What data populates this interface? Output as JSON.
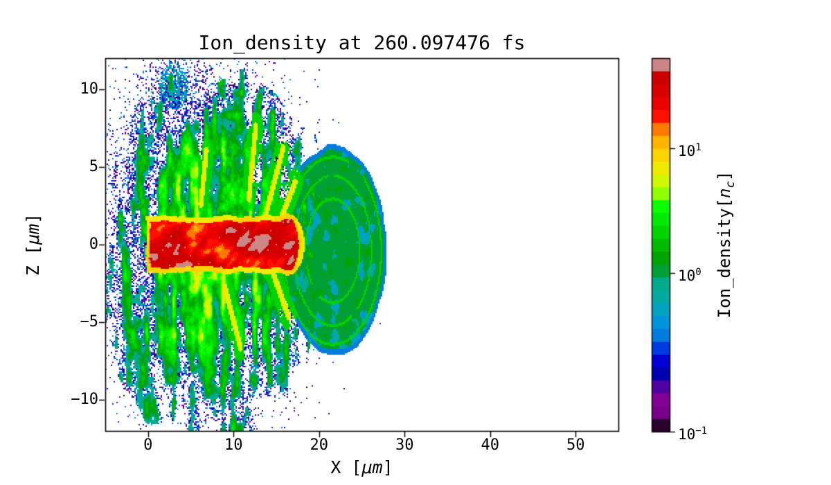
{
  "figure": {
    "background": "#ffffff"
  },
  "chart_data": {
    "type": "heatmap",
    "title": "Ion_density at 260.097476 fs",
    "xlabel": "X [μm]",
    "ylabel": "Z [μm]",
    "xlabel_parts": {
      "pre": "X [",
      "unit": "μm",
      "post": "]"
    },
    "ylabel_parts": {
      "pre": "Z [",
      "unit": "μm",
      "post": "]"
    },
    "x_range": [
      -5,
      55
    ],
    "z_range": [
      -12,
      12
    ],
    "x_ticks": [
      0,
      10,
      20,
      30,
      40,
      50
    ],
    "x_tick_labels": [
      "0",
      "10",
      "20",
      "30",
      "40",
      "50"
    ],
    "y_ticks": [
      10,
      5,
      0,
      -5,
      -10
    ],
    "y_tick_labels": [
      "10",
      "5",
      "0",
      "−5",
      "−10"
    ],
    "grid": false,
    "colorbar": {
      "label": "Ion_density[n_c]",
      "label_parts": {
        "pre": "Ion_density[",
        "symbol": "n",
        "sub": "c",
        "post": "]"
      },
      "scale": "log",
      "n_bands": 29,
      "value_min": 0.1,
      "value_max": 52,
      "ticks": [
        {
          "mantissa": "10",
          "exponent": "1",
          "value": 10,
          "frac_from_bottom": 0.759
        },
        {
          "mantissa": "10",
          "exponent": "0",
          "value": 1,
          "frac_from_bottom": 0.425
        },
        {
          "mantissa": "10",
          "exponent": "−1",
          "value": 0.1,
          "frac_from_bottom": 0.0
        }
      ]
    },
    "colormap_name": "nipy_spectral",
    "colormap_stops": [
      "#000000",
      "#770088",
      "#880099",
      "#0000AA",
      "#0000DD",
      "#0077DD",
      "#0099DD",
      "#00AAAA",
      "#00AA88",
      "#009900",
      "#00BB00",
      "#00DD00",
      "#00FF00",
      "#BBFF00",
      "#EEEE00",
      "#FFCC00",
      "#FF9900",
      "#FF0000",
      "#DD0000",
      "#CC0000",
      "#CCCCCC"
    ],
    "field": {
      "core": {
        "x_min": -0.2,
        "x_tip": 18.3,
        "z_half_width": 1.85,
        "rim_value": 7,
        "interior_value_range": [
          9,
          40
        ],
        "hotspot": {
          "x": 12.3,
          "z": 0.15,
          "extra": 16
        },
        "max_speck_value": 58
      },
      "plume": {
        "center_x": 7.0,
        "center_z": -0.3,
        "radius_x": 13.0,
        "radius_z": 11.2,
        "base_value_range": [
          0.7,
          3.5
        ],
        "filament_value": 6.5
      },
      "blob": {
        "center_x": 21.6,
        "center_z": -0.4,
        "radius_x": 6.3,
        "radius_z": 6.7,
        "base_value": 1.0,
        "blue_patch_value": 0.55,
        "arc_value": 1.9,
        "rim_value": 0.42,
        "arc_radii_frac": [
          0.5,
          0.72,
          0.9
        ]
      },
      "downward_column": {
        "x_min": 8.0,
        "x_max": 12.5,
        "z_max": -5.5,
        "value": 1.1
      },
      "lower_left_blob": {
        "x": 3.0,
        "z": -6.0,
        "radius": 3.4,
        "value": 2.0
      },
      "upper_cluster": {
        "x": 3.5,
        "z": 9.5,
        "strength": 0.28
      },
      "upper_blue_clump": {
        "x": 3.0,
        "z": 10.2,
        "rx": 1.7,
        "rz": 1.5
      },
      "speckle_halo": {
        "value_range": [
          0.11,
          0.5
        ],
        "extent_x": [
          -5,
          30
        ],
        "extent_z": [
          -12,
          12
        ]
      },
      "filaments": [
        {
          "x1": 13.8,
          "z1": 2.0,
          "x2": 15.8,
          "z2": 6.2
        },
        {
          "x1": 11.8,
          "z1": 3.0,
          "x2": 12.6,
          "z2": 7.6
        },
        {
          "x1": 15.2,
          "z1": 1.2,
          "x2": 17.2,
          "z2": 4.0
        },
        {
          "x1": 9.0,
          "z1": -2.8,
          "x2": 10.8,
          "z2": -6.6
        },
        {
          "x1": 14.6,
          "z1": -1.8,
          "x2": 16.4,
          "z2": -4.6
        },
        {
          "x1": 6.2,
          "z1": 2.6,
          "x2": 6.8,
          "z2": 6.0
        }
      ]
    }
  }
}
